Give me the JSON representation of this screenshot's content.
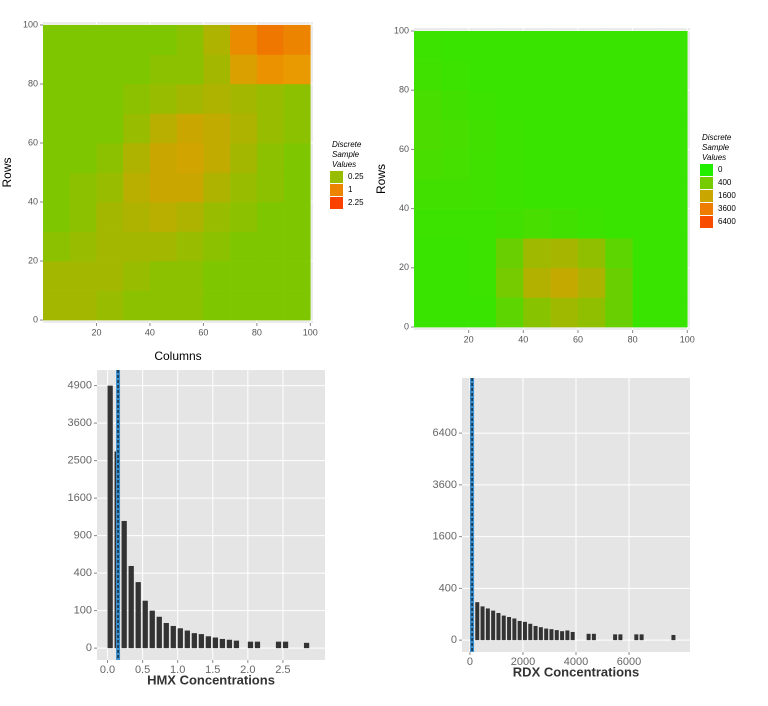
{
  "chart_data": [
    {
      "type": "heatmap",
      "xlabel": "Columns",
      "ylabel": "Rows",
      "x": [
        5,
        15,
        25,
        35,
        45,
        55,
        65,
        75,
        85,
        95
      ],
      "y": [
        5,
        15,
        25,
        35,
        45,
        55,
        65,
        75,
        85,
        95
      ],
      "z": [
        [
          0.3,
          0.3,
          0.25,
          0.2,
          0.2,
          0.2,
          0.15,
          0.15,
          0.15,
          0.15
        ],
        [
          0.3,
          0.3,
          0.3,
          0.25,
          0.2,
          0.2,
          0.15,
          0.15,
          0.15,
          0.15
        ],
        [
          0.2,
          0.25,
          0.3,
          0.3,
          0.3,
          0.25,
          0.2,
          0.15,
          0.15,
          0.15
        ],
        [
          0.15,
          0.2,
          0.3,
          0.35,
          0.4,
          0.35,
          0.25,
          0.2,
          0.15,
          0.15
        ],
        [
          0.15,
          0.2,
          0.25,
          0.4,
          0.5,
          0.5,
          0.35,
          0.25,
          0.2,
          0.15
        ],
        [
          0.15,
          0.15,
          0.2,
          0.35,
          0.5,
          0.55,
          0.45,
          0.3,
          0.2,
          0.15
        ],
        [
          0.15,
          0.15,
          0.15,
          0.25,
          0.4,
          0.5,
          0.45,
          0.35,
          0.25,
          0.2
        ],
        [
          0.15,
          0.15,
          0.15,
          0.2,
          0.25,
          0.3,
          0.35,
          0.3,
          0.25,
          0.2
        ],
        [
          0.15,
          0.15,
          0.15,
          0.15,
          0.2,
          0.2,
          0.3,
          0.6,
          0.8,
          0.7
        ],
        [
          0.15,
          0.15,
          0.15,
          0.15,
          0.15,
          0.2,
          0.35,
          0.9,
          1.2,
          1.0
        ]
      ],
      "xlim": [
        0,
        101
      ],
      "ylim": [
        -1,
        101
      ],
      "xticks": [
        20,
        40,
        60,
        80,
        100
      ],
      "yticks": [
        0,
        20,
        40,
        60,
        80,
        100
      ],
      "color_scale": "sqrt",
      "color_range": [
        0,
        2.8
      ],
      "colors": [
        "#22ee00",
        "#e89a00",
        "#ff2a00"
      ],
      "legend_title": [
        "Discrete",
        "Sample",
        "Values"
      ],
      "legend_values": [
        0.25,
        1,
        2.25
      ]
    },
    {
      "type": "heatmap",
      "ylabel": "Rows",
      "x": [
        5,
        15,
        25,
        35,
        45,
        55,
        65,
        75,
        85,
        95
      ],
      "y": [
        5,
        15,
        25,
        35,
        45,
        55,
        65,
        75,
        85,
        95
      ],
      "z": [
        [
          30,
          30,
          30,
          200,
          600,
          900,
          700,
          300,
          30,
          30
        ],
        [
          30,
          30,
          40,
          400,
          1200,
          1500,
          1100,
          300,
          30,
          30
        ],
        [
          30,
          30,
          40,
          300,
          900,
          1000,
          700,
          200,
          30,
          30
        ],
        [
          40,
          40,
          40,
          60,
          80,
          60,
          40,
          30,
          30,
          30
        ],
        [
          60,
          60,
          50,
          40,
          30,
          30,
          30,
          30,
          30,
          30
        ],
        [
          80,
          70,
          50,
          40,
          30,
          30,
          30,
          30,
          30,
          30
        ],
        [
          100,
          80,
          60,
          40,
          30,
          30,
          30,
          30,
          30,
          30
        ],
        [
          80,
          60,
          40,
          30,
          30,
          30,
          30,
          30,
          30,
          30
        ],
        [
          50,
          40,
          30,
          30,
          30,
          30,
          30,
          30,
          30,
          30
        ],
        [
          40,
          30,
          30,
          30,
          30,
          30,
          30,
          30,
          30,
          30
        ]
      ],
      "xlim": [
        0,
        101
      ],
      "ylim": [
        -1,
        101
      ],
      "xticks": [
        20,
        40,
        60,
        80,
        100
      ],
      "yticks": [
        0,
        20,
        40,
        60,
        80,
        100
      ],
      "color_scale": "sqrt",
      "color_range": [
        0,
        9000
      ],
      "colors": [
        "#22ee00",
        "#e89a00",
        "#ff2a00"
      ],
      "legend_title": [
        "Discrete",
        "Sample",
        "Values"
      ],
      "legend_values": [
        0,
        400,
        1600,
        3600,
        6400
      ]
    },
    {
      "type": "histogram",
      "xlabel": "HMX Concentrations",
      "color": "#333333",
      "bins": [
        0,
        0.1,
        0.2,
        0.3,
        0.4,
        0.5,
        0.6,
        0.7,
        0.8,
        0.9,
        1,
        1.1,
        1.2,
        1.3,
        1.4,
        1.5,
        1.6,
        1.7,
        1.8,
        1.9,
        2,
        2.1,
        2.2,
        2.3,
        2.4,
        2.5,
        2.6,
        2.7,
        2.8,
        2.9
      ],
      "counts": [
        4900,
        2750,
        1150,
        480,
        310,
        160,
        100,
        70,
        45,
        35,
        28,
        22,
        16,
        14,
        10,
        8,
        6,
        5,
        4,
        0,
        3,
        3,
        0,
        0,
        3,
        3,
        0,
        0,
        2
      ],
      "xlim": [
        -0.15,
        3.1
      ],
      "ylim": [
        -10,
        5500
      ],
      "yscale": "sqrt",
      "xticks": [
        {
          "value": 0,
          "label": "0.0"
        },
        0.5,
        {
          "value": 1,
          "label": "1.0"
        },
        1.5,
        {
          "value": 2,
          "label": "2.0"
        },
        2.5
      ],
      "yticks": [
        0,
        100,
        400,
        900,
        1600,
        2500,
        3600,
        4900
      ],
      "vline": 0.15,
      "vline_color": "#3a8fd0"
    },
    {
      "type": "histogram",
      "xlabel": "RDX Concentrations",
      "color": "#333333",
      "bins": [
        0,
        200,
        400,
        600,
        800,
        1000,
        1200,
        1400,
        1600,
        1800,
        2000,
        2200,
        2400,
        2600,
        2800,
        3000,
        3200,
        3400,
        3600,
        3800,
        4000,
        4200,
        4400,
        4600,
        4800,
        5000,
        5200,
        5400,
        5600,
        5800,
        6000,
        6200,
        6400,
        6600,
        6800,
        7000,
        7200,
        7400,
        7600,
        7800,
        8000
      ],
      "counts": [
        9300,
        215,
        170,
        150,
        130,
        110,
        90,
        80,
        70,
        55,
        50,
        40,
        30,
        25,
        20,
        18,
        15,
        12,
        14,
        10,
        0,
        0,
        6,
        6,
        0,
        0,
        0,
        5,
        5,
        0,
        0,
        5,
        5,
        0,
        0,
        0,
        0,
        0,
        4,
        0
      ],
      "xlim": [
        -300,
        8300
      ],
      "ylim": [
        -21,
        10260
      ],
      "yscale": "sqrt",
      "xticks": [
        0,
        2000,
        4000,
        6000
      ],
      "yticks": [
        0,
        400,
        1600,
        3600,
        6400
      ],
      "vline": 80,
      "vline_color": "#3a8fd0"
    }
  ]
}
